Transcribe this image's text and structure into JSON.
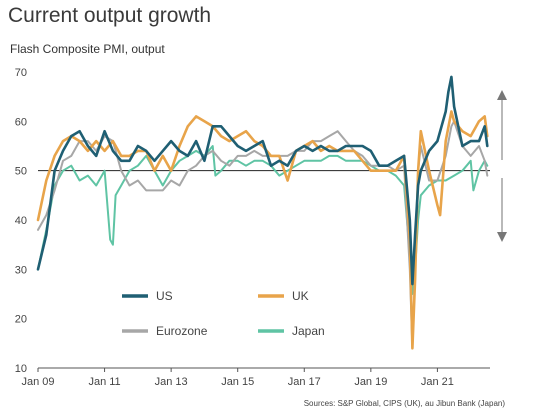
{
  "chart_data": {
    "type": "line",
    "title": "Current output growth",
    "subtitle": "Flash Composite PMI, output",
    "source": "Sources: S&P Global, CIPS (UK), au Jibun Bank (Japan)",
    "ylim": [
      10,
      70
    ],
    "yticks": [
      "10",
      "20",
      "30",
      "40",
      "50",
      "60",
      "70"
    ],
    "xlim": [
      2009.0,
      2022.58
    ],
    "xticks": [
      "Jan 09",
      "Jan 11",
      "Jan 13",
      "Jan 15",
      "Jan 17",
      "Jan 19",
      "Jan 21"
    ],
    "reference_line": 50,
    "grid": false,
    "legend": "bottom-left",
    "series": [
      {
        "name": "US",
        "color": "#1f5f73",
        "x": [
          2009.0,
          2009.25,
          2009.5,
          2009.75,
          2010.0,
          2010.25,
          2010.5,
          2010.75,
          2011.0,
          2011.25,
          2011.5,
          2011.75,
          2012.0,
          2012.25,
          2012.5,
          2012.75,
          2013.0,
          2013.25,
          2013.5,
          2013.75,
          2014.0,
          2014.25,
          2014.5,
          2014.75,
          2015.0,
          2015.25,
          2015.5,
          2015.75,
          2016.0,
          2016.25,
          2016.5,
          2016.75,
          2017.0,
          2017.25,
          2017.5,
          2017.75,
          2018.0,
          2018.25,
          2018.5,
          2018.75,
          2019.0,
          2019.25,
          2019.5,
          2019.75,
          2020.0,
          2020.17,
          2020.25,
          2020.33,
          2020.42,
          2020.5,
          2020.75,
          2021.0,
          2021.25,
          2021.33,
          2021.42,
          2021.5,
          2021.75,
          2022.0,
          2022.25,
          2022.42,
          2022.5
        ],
        "y": [
          30,
          37,
          50,
          54,
          57,
          58,
          55,
          53,
          58,
          54,
          52,
          52,
          55,
          54,
          52,
          54,
          56,
          54,
          53,
          56,
          52,
          59,
          59,
          57,
          55,
          54,
          55,
          56,
          51,
          52,
          51,
          54,
          55,
          54,
          55,
          54,
          54,
          55,
          55,
          55,
          54,
          51,
          51,
          52,
          53,
          40,
          27,
          37,
          47,
          50,
          54,
          56,
          62,
          66,
          69,
          63,
          55,
          56,
          56,
          59,
          55
        ]
      },
      {
        "name": "UK",
        "color": "#e8a44a",
        "x": [
          2009.0,
          2009.25,
          2009.5,
          2009.75,
          2010.0,
          2010.25,
          2010.5,
          2010.75,
          2011.0,
          2011.25,
          2011.5,
          2011.75,
          2012.0,
          2012.25,
          2012.5,
          2012.75,
          2013.0,
          2013.25,
          2013.5,
          2013.75,
          2014.0,
          2014.25,
          2014.5,
          2014.75,
          2015.0,
          2015.25,
          2015.5,
          2015.75,
          2016.0,
          2016.25,
          2016.5,
          2016.75,
          2017.0,
          2017.25,
          2017.5,
          2017.75,
          2018.0,
          2018.25,
          2018.5,
          2018.75,
          2019.0,
          2019.25,
          2019.5,
          2019.75,
          2020.0,
          2020.17,
          2020.25,
          2020.33,
          2020.42,
          2020.5,
          2020.75,
          2021.0,
          2021.08,
          2021.25,
          2021.42,
          2021.5,
          2021.75,
          2022.0,
          2022.25,
          2022.42,
          2022.5
        ],
        "y": [
          40,
          48,
          53,
          56,
          57,
          56,
          54,
          56,
          54,
          56,
          53,
          53,
          54,
          54,
          50,
          53,
          50,
          55,
          59,
          61,
          60,
          59,
          57,
          56,
          57,
          58,
          56,
          55,
          53,
          53,
          48,
          54,
          55,
          56,
          54,
          55,
          54,
          54,
          54,
          52,
          50,
          50,
          50,
          50,
          53,
          36,
          14,
          28,
          50,
          58,
          50,
          43,
          41,
          56,
          62,
          60,
          58,
          57,
          60,
          61,
          57
        ]
      },
      {
        "name": "Eurozone",
        "color": "#a7a7a7",
        "x": [
          2009.0,
          2009.25,
          2009.5,
          2009.75,
          2010.0,
          2010.25,
          2010.5,
          2010.75,
          2011.0,
          2011.25,
          2011.5,
          2011.75,
          2012.0,
          2012.25,
          2012.5,
          2012.75,
          2013.0,
          2013.25,
          2013.5,
          2013.75,
          2014.0,
          2014.25,
          2014.5,
          2014.75,
          2015.0,
          2015.25,
          2015.5,
          2015.75,
          2016.0,
          2016.25,
          2016.5,
          2016.75,
          2017.0,
          2017.25,
          2017.5,
          2017.75,
          2018.0,
          2018.25,
          2018.5,
          2018.75,
          2019.0,
          2019.25,
          2019.5,
          2019.75,
          2020.0,
          2020.17,
          2020.25,
          2020.33,
          2020.42,
          2020.5,
          2020.75,
          2021.0,
          2021.25,
          2021.42,
          2021.5,
          2021.75,
          2022.0,
          2022.25,
          2022.42,
          2022.5
        ],
        "y": [
          38,
          41,
          46,
          52,
          53,
          56,
          56,
          54,
          57,
          56,
          50,
          47,
          48,
          46,
          46,
          46,
          48,
          47,
          50,
          51,
          53,
          54,
          52,
          51,
          53,
          53,
          54,
          53,
          53,
          53,
          53,
          54,
          54,
          56,
          56,
          57,
          58,
          56,
          54,
          53,
          51,
          51,
          51,
          50,
          51,
          30,
          14,
          30,
          50,
          55,
          48,
          48,
          53,
          59,
          60,
          55,
          53,
          55,
          52,
          49
        ]
      },
      {
        "name": "Japan",
        "color": "#5fc4a4",
        "x": [
          2009.0,
          2009.25,
          2009.5,
          2009.75,
          2010.0,
          2010.25,
          2010.5,
          2010.75,
          2011.0,
          2011.17,
          2011.25,
          2011.33,
          2011.5,
          2011.75,
          2012.0,
          2012.25,
          2012.5,
          2012.75,
          2013.0,
          2013.25,
          2013.5,
          2013.75,
          2014.0,
          2014.25,
          2014.33,
          2014.5,
          2014.75,
          2015.0,
          2015.25,
          2015.5,
          2015.75,
          2016.0,
          2016.25,
          2016.5,
          2016.75,
          2017.0,
          2017.25,
          2017.5,
          2017.75,
          2018.0,
          2018.25,
          2018.5,
          2018.75,
          2019.0,
          2019.25,
          2019.5,
          2019.75,
          2020.0,
          2020.17,
          2020.25,
          2020.33,
          2020.42,
          2020.5,
          2020.75,
          2021.0,
          2021.25,
          2021.5,
          2021.75,
          2022.0,
          2022.08,
          2022.25,
          2022.42,
          2022.5
        ],
        "y": [
          30,
          38,
          47,
          50,
          51,
          48,
          49,
          47,
          50,
          36,
          35,
          45,
          47,
          50,
          51,
          53,
          50,
          47,
          50,
          52,
          53,
          54,
          53,
          55,
          49,
          50,
          52,
          52,
          51,
          52,
          52,
          51,
          49,
          50,
          51,
          52,
          52,
          52,
          53,
          53,
          52,
          52,
          52,
          51,
          50,
          50,
          49,
          47,
          33,
          25,
          30,
          40,
          45,
          47,
          48,
          48,
          49,
          50,
          52,
          46,
          50,
          52,
          51
        ]
      }
    ]
  }
}
